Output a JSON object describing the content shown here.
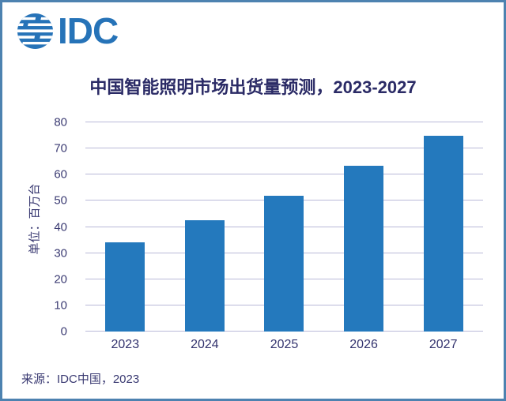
{
  "logo": {
    "brand": "IDC",
    "icon": "idc-globe-icon"
  },
  "title": "中国智能照明市场出货量预测，2023-2027",
  "source": "来源：IDC中国，2023",
  "chart_data": {
    "type": "bar",
    "title": "中国智能照明市场出货量预测，2023-2027",
    "categories": [
      "2023",
      "2024",
      "2025",
      "2026",
      "2027"
    ],
    "values": [
      34,
      42.5,
      52,
      63.5,
      75
    ],
    "ylabel": "单位：百万台",
    "xlabel": "",
    "ylim": [
      0,
      80
    ],
    "yticks": [
      0,
      10,
      20,
      30,
      40,
      50,
      60,
      70,
      80
    ],
    "grid": true,
    "legend": false,
    "bar_color": "#2479bd"
  },
  "colors": {
    "accent_blue": "#2479bd",
    "logo_blue": "#2673b8",
    "text_navy": "#2b2b66",
    "gridline": "#b9b9d8",
    "frame_border": "#4d82b0"
  }
}
